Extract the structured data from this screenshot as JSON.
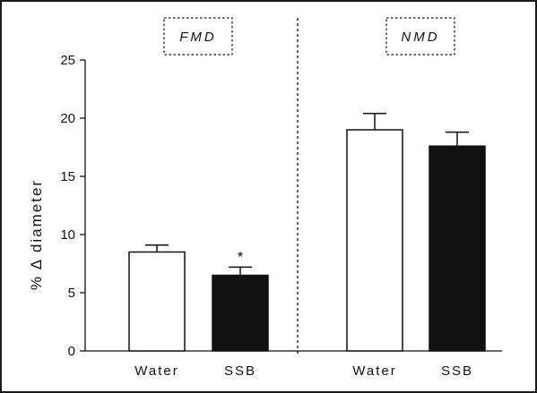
{
  "chart_data": {
    "type": "bar",
    "ylabel": "% Δ diameter",
    "ylim": [
      0,
      25
    ],
    "yticks": [
      0,
      5,
      10,
      15,
      20,
      25
    ],
    "grid": false,
    "groups": [
      {
        "label": "FMD",
        "bars": [
          {
            "category": "Water",
            "value": 8.5,
            "error": 0.6,
            "fill": "#ffffff",
            "annotation": ""
          },
          {
            "category": "SSB",
            "value": 6.5,
            "error": 0.7,
            "fill": "#111111",
            "annotation": "*"
          }
        ]
      },
      {
        "label": "NMD",
        "bars": [
          {
            "category": "Water",
            "value": 19.0,
            "error": 1.4,
            "fill": "#ffffff",
            "annotation": ""
          },
          {
            "category": "SSB",
            "value": 17.6,
            "error": 1.2,
            "fill": "#111111",
            "annotation": ""
          }
        ]
      }
    ]
  }
}
